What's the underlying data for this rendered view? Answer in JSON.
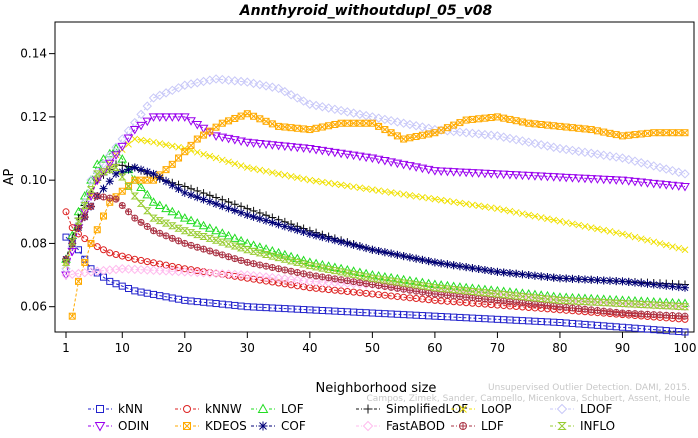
{
  "chart_data": {
    "type": "line",
    "title": "Annthyroid_withoutdupl_05_v08",
    "xlabel": "Neighborhood size",
    "ylabel": "AP",
    "xlim": [
      1,
      100
    ],
    "ylim": [
      0.052,
      0.15
    ],
    "xticks": [
      1,
      10,
      20,
      30,
      40,
      50,
      60,
      70,
      80,
      90,
      100
    ],
    "yticks": [
      0.06,
      0.08,
      0.1,
      0.12,
      0.14
    ],
    "grid": false,
    "legend_position": "bottom",
    "credit_line1": "Unsupervised Outlier Detection. DAMI, 2015.",
    "credit_line2": "Campos, Zimek, Sander, Campello, Micenkova, Schubert, Assent, Houle",
    "series": [
      {
        "name": "kNN",
        "color": "#2222cc",
        "marker": "square",
        "knots": [
          [
            1,
            0.082
          ],
          [
            3,
            0.078
          ],
          [
            5,
            0.072
          ],
          [
            8,
            0.068
          ],
          [
            12,
            0.065
          ],
          [
            20,
            0.062
          ],
          [
            30,
            0.06
          ],
          [
            40,
            0.059
          ],
          [
            60,
            0.057
          ],
          [
            80,
            0.055
          ],
          [
            100,
            0.052
          ]
        ]
      },
      {
        "name": "kNNW",
        "color": "#dd2222",
        "marker": "circle",
        "knots": [
          [
            1,
            0.09
          ],
          [
            2,
            0.085
          ],
          [
            3,
            0.083
          ],
          [
            5,
            0.08
          ],
          [
            8,
            0.077
          ],
          [
            12,
            0.075
          ],
          [
            20,
            0.072
          ],
          [
            30,
            0.069
          ],
          [
            40,
            0.066
          ],
          [
            60,
            0.062
          ],
          [
            80,
            0.059
          ],
          [
            100,
            0.056
          ]
        ]
      },
      {
        "name": "LOF",
        "color": "#22dd22",
        "marker": "triangle-up",
        "knots": [
          [
            1,
            0.075
          ],
          [
            3,
            0.09
          ],
          [
            6,
            0.105
          ],
          [
            9,
            0.11
          ],
          [
            12,
            0.1
          ],
          [
            15,
            0.093
          ],
          [
            20,
            0.088
          ],
          [
            30,
            0.08
          ],
          [
            40,
            0.074
          ],
          [
            50,
            0.07
          ],
          [
            60,
            0.067
          ],
          [
            70,
            0.065
          ],
          [
            80,
            0.063
          ],
          [
            90,
            0.062
          ],
          [
            100,
            0.061
          ]
        ]
      },
      {
        "name": "SimplifiedLOF",
        "color": "#111111",
        "marker": "plus",
        "knots": [
          [
            1,
            0.075
          ],
          [
            3,
            0.088
          ],
          [
            6,
            0.1
          ],
          [
            9,
            0.105
          ],
          [
            12,
            0.104
          ],
          [
            15,
            0.101
          ],
          [
            20,
            0.098
          ],
          [
            30,
            0.091
          ],
          [
            40,
            0.084
          ],
          [
            50,
            0.078
          ],
          [
            60,
            0.074
          ],
          [
            70,
            0.071
          ],
          [
            80,
            0.069
          ],
          [
            90,
            0.068
          ],
          [
            100,
            0.067
          ]
        ]
      },
      {
        "name": "LoOP",
        "color": "#f0e000",
        "marker": "x",
        "knots": [
          [
            1,
            0.073
          ],
          [
            3,
            0.085
          ],
          [
            6,
            0.1
          ],
          [
            9,
            0.108
          ],
          [
            12,
            0.113
          ],
          [
            15,
            0.112
          ],
          [
            20,
            0.11
          ],
          [
            30,
            0.104
          ],
          [
            40,
            0.1
          ],
          [
            50,
            0.097
          ],
          [
            60,
            0.094
          ],
          [
            70,
            0.091
          ],
          [
            80,
            0.087
          ],
          [
            90,
            0.083
          ],
          [
            100,
            0.078
          ]
        ]
      },
      {
        "name": "LDOF",
        "color": "#c8c8f8",
        "marker": "diamond",
        "knots": [
          [
            1,
            0.072
          ],
          [
            5,
            0.1
          ],
          [
            10,
            0.113
          ],
          [
            15,
            0.126
          ],
          [
            20,
            0.13
          ],
          [
            25,
            0.132
          ],
          [
            30,
            0.131
          ],
          [
            35,
            0.129
          ],
          [
            40,
            0.124
          ],
          [
            50,
            0.12
          ],
          [
            60,
            0.116
          ],
          [
            70,
            0.114
          ],
          [
            80,
            0.11
          ],
          [
            90,
            0.107
          ],
          [
            100,
            0.102
          ]
        ]
      },
      {
        "name": "ODIN",
        "color": "#9900ee",
        "marker": "triangle-down",
        "knots": [
          [
            1,
            0.07
          ],
          [
            3,
            0.085
          ],
          [
            6,
            0.1
          ],
          [
            9,
            0.108
          ],
          [
            12,
            0.116
          ],
          [
            15,
            0.12
          ],
          [
            20,
            0.12
          ],
          [
            25,
            0.114
          ],
          [
            30,
            0.112
          ],
          [
            40,
            0.11
          ],
          [
            50,
            0.107
          ],
          [
            60,
            0.103
          ],
          [
            70,
            0.102
          ],
          [
            80,
            0.101
          ],
          [
            90,
            0.1
          ],
          [
            100,
            0.098
          ]
        ]
      },
      {
        "name": "KDEOS",
        "color": "#ffaa00",
        "marker": "square-x",
        "knots": [
          [
            2,
            0.057
          ],
          [
            3,
            0.068
          ],
          [
            5,
            0.08
          ],
          [
            8,
            0.093
          ],
          [
            12,
            0.1
          ],
          [
            15,
            0.1
          ],
          [
            18,
            0.105
          ],
          [
            22,
            0.113
          ],
          [
            26,
            0.118
          ],
          [
            30,
            0.121
          ],
          [
            35,
            0.117
          ],
          [
            40,
            0.116
          ],
          [
            45,
            0.118
          ],
          [
            50,
            0.118
          ],
          [
            55,
            0.113
          ],
          [
            60,
            0.115
          ],
          [
            65,
            0.119
          ],
          [
            70,
            0.12
          ],
          [
            75,
            0.118
          ],
          [
            80,
            0.117
          ],
          [
            85,
            0.116
          ],
          [
            90,
            0.114
          ],
          [
            95,
            0.115
          ],
          [
            100,
            0.115
          ]
        ]
      },
      {
        "name": "COF",
        "color": "#000077",
        "marker": "asterisk",
        "knots": [
          [
            1,
            0.075
          ],
          [
            3,
            0.085
          ],
          [
            6,
            0.095
          ],
          [
            9,
            0.102
          ],
          [
            12,
            0.104
          ],
          [
            15,
            0.102
          ],
          [
            20,
            0.096
          ],
          [
            30,
            0.089
          ],
          [
            40,
            0.083
          ],
          [
            50,
            0.078
          ],
          [
            60,
            0.074
          ],
          [
            70,
            0.071
          ],
          [
            80,
            0.069
          ],
          [
            90,
            0.068
          ],
          [
            100,
            0.066
          ]
        ]
      },
      {
        "name": "FastABOD",
        "color": "#ffbbee",
        "marker": "diamond",
        "knots": [
          [
            1,
            0.07
          ],
          [
            5,
            0.071
          ],
          [
            10,
            0.072
          ],
          [
            20,
            0.071
          ],
          [
            30,
            0.07
          ],
          [
            40,
            0.068
          ],
          [
            50,
            0.067
          ],
          [
            60,
            0.065
          ],
          [
            70,
            0.064
          ],
          [
            80,
            0.062
          ],
          [
            90,
            0.061
          ],
          [
            100,
            0.06
          ]
        ]
      },
      {
        "name": "LDF",
        "color": "#aa3344",
        "marker": "circle-plus",
        "knots": [
          [
            1,
            0.075
          ],
          [
            3,
            0.085
          ],
          [
            6,
            0.095
          ],
          [
            9,
            0.094
          ],
          [
            12,
            0.088
          ],
          [
            15,
            0.084
          ],
          [
            20,
            0.08
          ],
          [
            30,
            0.074
          ],
          [
            40,
            0.07
          ],
          [
            50,
            0.067
          ],
          [
            60,
            0.064
          ],
          [
            70,
            0.062
          ],
          [
            80,
            0.06
          ],
          [
            90,
            0.058
          ],
          [
            100,
            0.057
          ]
        ]
      },
      {
        "name": "INFLO",
        "color": "#99cc33",
        "marker": "hourglass",
        "knots": [
          [
            1,
            0.074
          ],
          [
            3,
            0.087
          ],
          [
            6,
            0.102
          ],
          [
            9,
            0.104
          ],
          [
            12,
            0.095
          ],
          [
            15,
            0.088
          ],
          [
            20,
            0.084
          ],
          [
            30,
            0.078
          ],
          [
            40,
            0.073
          ],
          [
            50,
            0.069
          ],
          [
            60,
            0.066
          ],
          [
            70,
            0.064
          ],
          [
            80,
            0.062
          ],
          [
            90,
            0.061
          ],
          [
            100,
            0.06
          ]
        ]
      }
    ]
  }
}
